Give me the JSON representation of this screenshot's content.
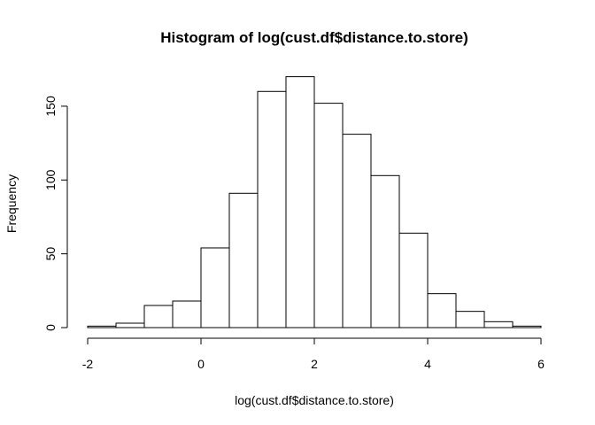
{
  "chart_data": {
    "type": "bar",
    "title": "Histogram of log(cust.df$distance.to.store)",
    "xlabel": "log(cust.df$distance.to.store)",
    "ylabel": "Frequency",
    "xlim": [
      -2,
      6
    ],
    "ylim": [
      0,
      170
    ],
    "x_ticks": [
      -2,
      0,
      2,
      4,
      6
    ],
    "y_ticks": [
      0,
      50,
      100,
      150
    ],
    "grid": false,
    "bins": [
      {
        "start": -2.0,
        "end": -1.5,
        "count": 1
      },
      {
        "start": -1.5,
        "end": -1.0,
        "count": 3
      },
      {
        "start": -1.0,
        "end": -0.5,
        "count": 15
      },
      {
        "start": -0.5,
        "end": 0.0,
        "count": 18
      },
      {
        "start": 0.0,
        "end": 0.5,
        "count": 54
      },
      {
        "start": 0.5,
        "end": 1.0,
        "count": 91
      },
      {
        "start": 1.0,
        "end": 1.5,
        "count": 160
      },
      {
        "start": 1.5,
        "end": 2.0,
        "count": 170
      },
      {
        "start": 2.0,
        "end": 2.5,
        "count": 152
      },
      {
        "start": 2.5,
        "end": 3.0,
        "count": 131
      },
      {
        "start": 3.0,
        "end": 3.5,
        "count": 103
      },
      {
        "start": 3.5,
        "end": 4.0,
        "count": 64
      },
      {
        "start": 4.0,
        "end": 4.5,
        "count": 23
      },
      {
        "start": 4.5,
        "end": 5.0,
        "count": 11
      },
      {
        "start": 5.0,
        "end": 5.5,
        "count": 4
      },
      {
        "start": 5.5,
        "end": 6.0,
        "count": 1
      }
    ]
  }
}
